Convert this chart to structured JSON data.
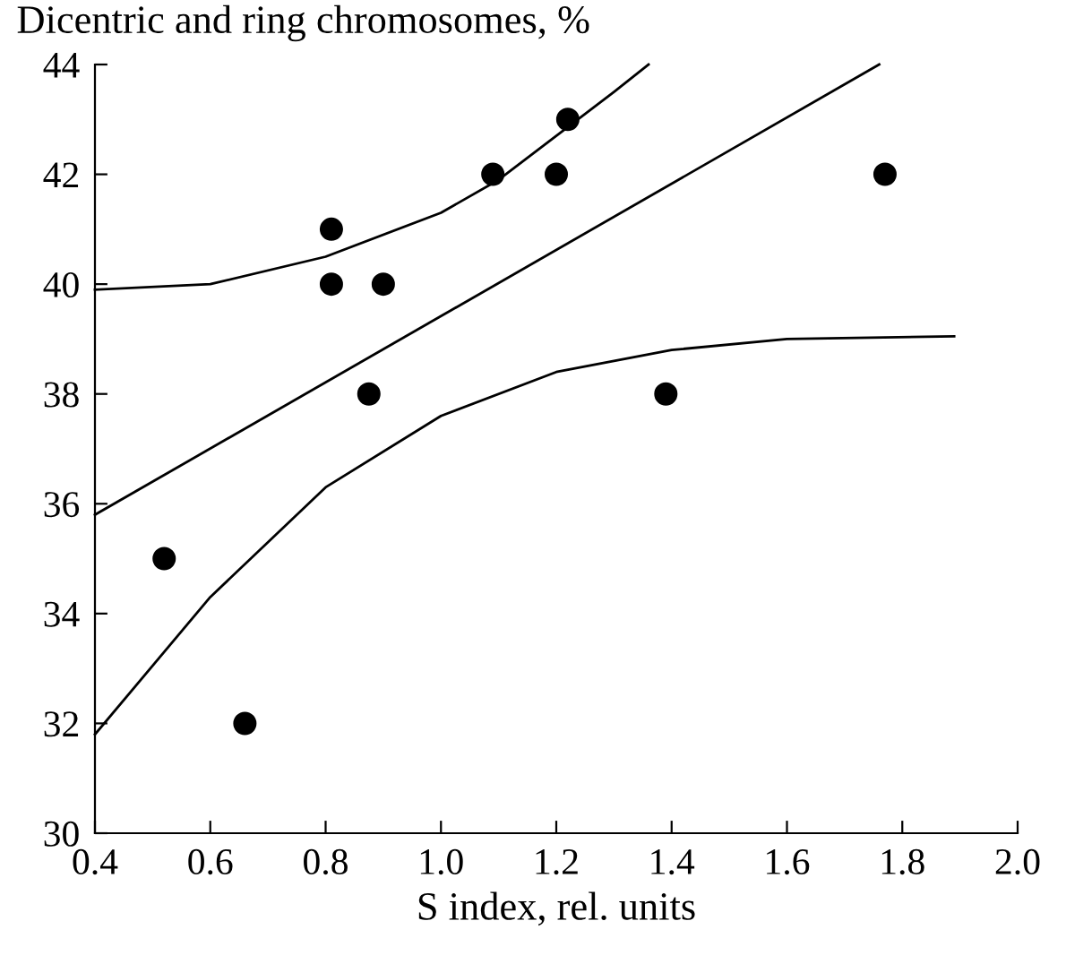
{
  "chart_data": {
    "type": "scatter",
    "xlabel": "S index, rel. units",
    "ylabel": "Dicentric and ring chromosomes, %",
    "xlim": [
      0.4,
      2.0
    ],
    "ylim": [
      30,
      44
    ],
    "xticks": [
      {
        "value": 0.4,
        "label": "0.4"
      },
      {
        "value": 0.6,
        "label": "0.6"
      },
      {
        "value": 0.8,
        "label": "0.8"
      },
      {
        "value": 1.0,
        "label": "1.0"
      },
      {
        "value": 1.2,
        "label": "1.2"
      },
      {
        "value": 1.4,
        "label": "1.4"
      },
      {
        "value": 1.6,
        "label": "1.6"
      },
      {
        "value": 1.8,
        "label": "1.8"
      },
      {
        "value": 2.0,
        "label": "2.0"
      }
    ],
    "yticks": [
      30,
      32,
      34,
      36,
      38,
      40,
      42,
      44
    ],
    "grid": false,
    "marker": "circle",
    "series": [
      {
        "color": "#000000",
        "x": [
          0.52,
          0.66,
          0.81,
          0.81,
          0.875,
          0.9,
          1.09,
          1.2,
          1.22,
          1.39,
          1.77
        ],
        "values": [
          35,
          32,
          41,
          40,
          38,
          40,
          42,
          42,
          43,
          38,
          42
        ]
      },
      {
        "type": "line",
        "color": "#000000",
        "marker": "none",
        "line_style": "solid",
        "x": [
          0.4,
          1.76
        ],
        "values": [
          35.8,
          44
        ]
      },
      {
        "type": "line",
        "color": "#000000",
        "marker": "none",
        "line_style": "solid",
        "x": [
          0.4,
          0.6,
          0.8,
          1.0,
          1.1,
          1.2,
          1.3,
          1.36
        ],
        "values": [
          39.9,
          40.0,
          40.5,
          41.3,
          41.9,
          42.7,
          43.5,
          44
        ]
      },
      {
        "type": "line",
        "color": "#000000",
        "marker": "none",
        "line_style": "solid",
        "x": [
          0.4,
          0.6,
          0.8,
          1.0,
          1.2,
          1.4,
          1.6,
          1.89
        ],
        "values": [
          31.8,
          34.3,
          36.3,
          37.6,
          38.4,
          38.8,
          39.0,
          39.05
        ]
      }
    ]
  }
}
